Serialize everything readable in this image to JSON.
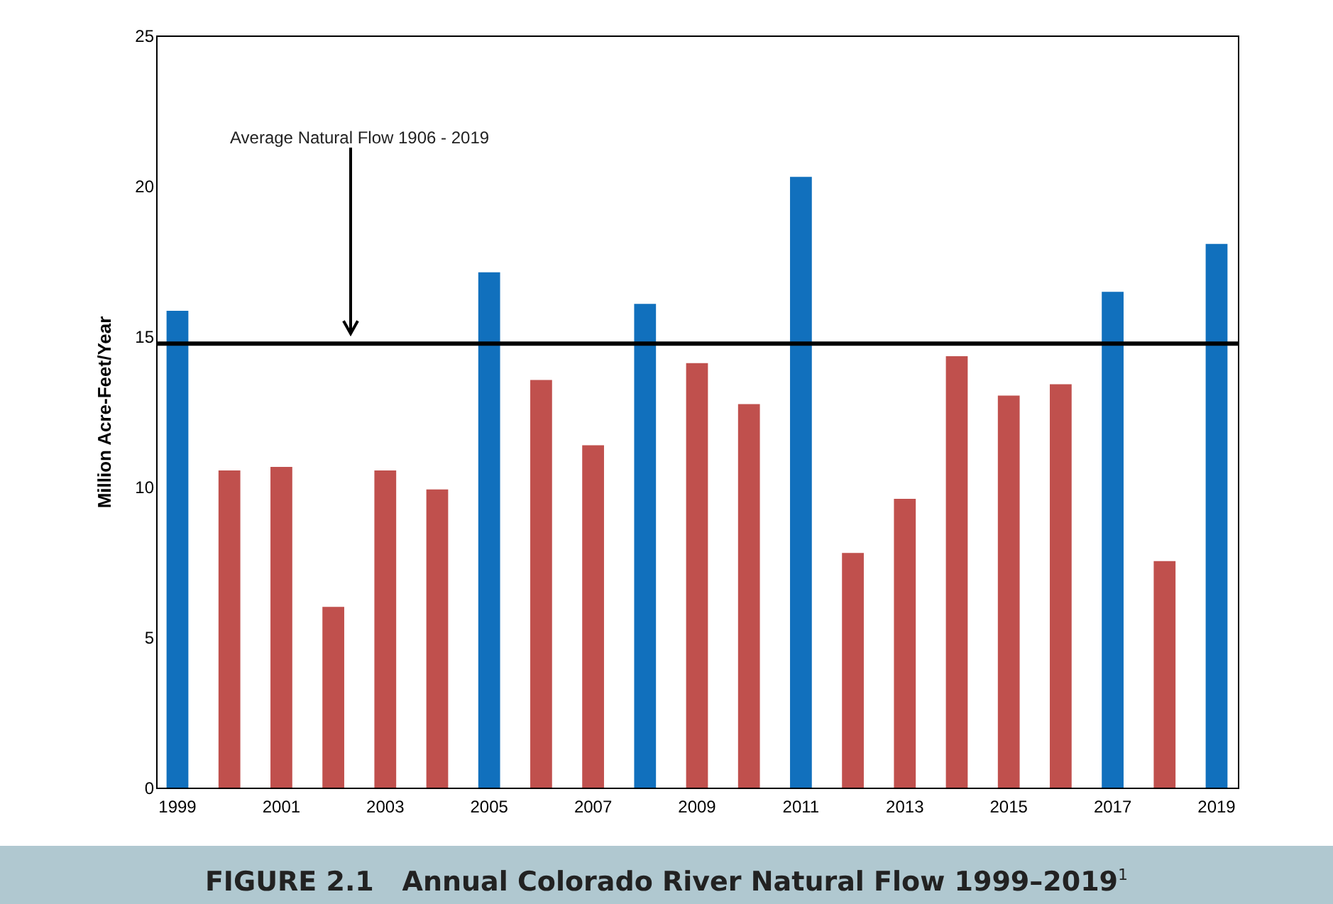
{
  "chart_data": {
    "type": "bar",
    "title": "FIGURE 2.1   Annual Colorado River Natural Flow 1999–2019$^{1}$",
    "ylabel": "Million Acre-Feet/Year",
    "categories": [
      "1999",
      null,
      "2001",
      null,
      "2003",
      null,
      "2005",
      null,
      "2007",
      null,
      "2009",
      null,
      "2011",
      null,
      "2013",
      null,
      "2015",
      null,
      "2017",
      null,
      "2019"
    ],
    "values": [
      15.85,
      10.54,
      10.66,
      6.01,
      10.54,
      9.91,
      17.13,
      13.55,
      11.38,
      16.08,
      14.11,
      12.75,
      20.3,
      7.8,
      9.6,
      14.34,
      13.03,
      13.41,
      16.48,
      7.53,
      18.07
    ],
    "colors": [
      "#1170bd",
      "#c0504d",
      "#c0504d",
      "#c0504d",
      "#c0504d",
      "#c0504d",
      "#1170bd",
      "#c0504d",
      "#c0504d",
      "#1170bd",
      "#c0504d",
      "#c0504d",
      "#1170bd",
      "#c0504d",
      "#c0504d",
      "#c0504d",
      "#c0504d",
      "#c0504d",
      "#1170bd",
      "#c0504d",
      "#1170bd"
    ],
    "ylim": [
      0,
      25
    ],
    "yticks": [
      0,
      5,
      10,
      15,
      20,
      25
    ],
    "ref_lines": [
      {
        "axis": "y",
        "value": 14.76,
        "label": "Average Natural Flow 1906 - 2019",
        "color": "#000000"
      }
    ],
    "grid": false
  }
}
